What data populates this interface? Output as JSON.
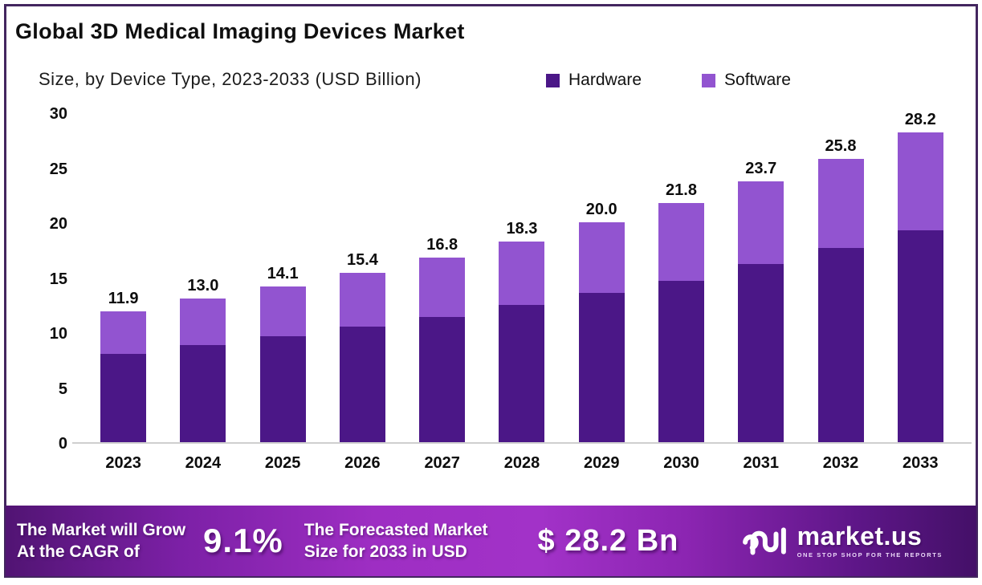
{
  "title": "Global 3D Medical Imaging Devices Market",
  "subtitle": "Size, by Device Type, 2023-2033 (USD Billion)",
  "legend": [
    {
      "label": "Hardware",
      "color": "#4b1787"
    },
    {
      "label": "Software",
      "color": "#9254d0"
    }
  ],
  "colors": {
    "hardware": "#4b1787",
    "software": "#9254d0",
    "frame_border": "#43265f",
    "axis_line": "#cfcfcf",
    "banner_left": "#511473",
    "banner_mid": "#a232c8",
    "banner_right": "#441068",
    "text": "#0d0d0d"
  },
  "chart_data": {
    "type": "bar",
    "stacked": true,
    "title": "Global 3D Medical Imaging Devices Market",
    "subtitle": "Size, by Device Type, 2023-2033 (USD Billion)",
    "categories": [
      "2023",
      "2024",
      "2025",
      "2026",
      "2027",
      "2028",
      "2029",
      "2030",
      "2031",
      "2032",
      "2033"
    ],
    "series": [
      {
        "name": "Hardware",
        "color": "#4b1787",
        "values": [
          8.0,
          8.8,
          9.6,
          10.5,
          11.4,
          12.5,
          13.6,
          14.7,
          16.2,
          17.7,
          19.3
        ]
      },
      {
        "name": "Software",
        "color": "#9254d0",
        "values": [
          3.9,
          4.2,
          4.5,
          4.9,
          5.4,
          5.8,
          6.4,
          7.1,
          7.5,
          8.1,
          8.9
        ]
      }
    ],
    "totals": [
      11.9,
      13.0,
      14.1,
      15.4,
      16.8,
      18.3,
      20.0,
      21.8,
      23.7,
      25.8,
      28.2
    ],
    "total_labels": [
      "11.9",
      "13.0",
      "14.1",
      "15.4",
      "16.8",
      "18.3",
      "20.0",
      "21.8",
      "23.7",
      "25.8",
      "28.2"
    ],
    "xlabel": "",
    "ylabel": "",
    "yticks": [
      0,
      5,
      10,
      15,
      20,
      25,
      30
    ],
    "ylim": [
      0,
      30
    ],
    "grid": false,
    "legend_position": "top"
  },
  "footer": {
    "cagr_label_line1": "The Market will Grow",
    "cagr_label_line2": "At the CAGR of",
    "cagr_value": "9.1%",
    "forecast_label_line1": "The Forecasted Market",
    "forecast_label_line2": "Size for 2033 in USD",
    "forecast_value": "$ 28.2 Bn",
    "brand": {
      "name": "market.us",
      "tagline": "ONE STOP SHOP FOR THE REPORTS"
    }
  }
}
